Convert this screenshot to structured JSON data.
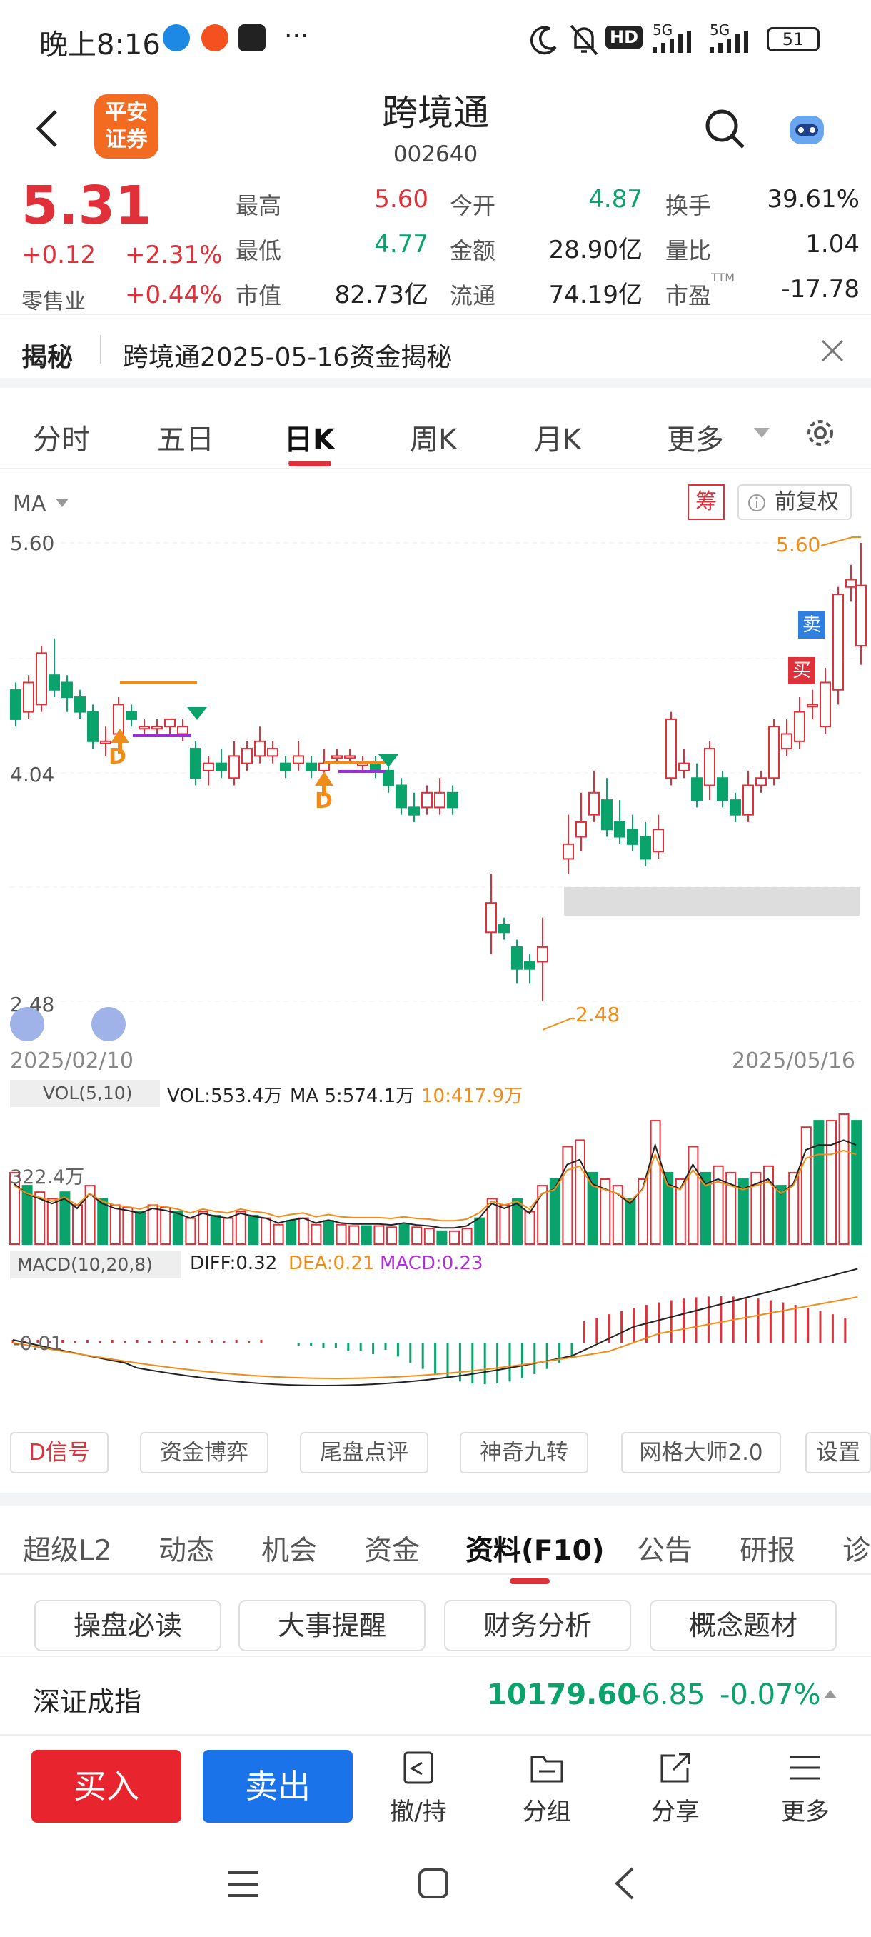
{
  "status_bar": {
    "time": "晚上8:16",
    "more": "···",
    "hd": "HD",
    "net1": "5G",
    "net2": "5G",
    "battery": "51"
  },
  "header": {
    "logo_line1": "平安",
    "logo_line2": "证券",
    "title": "跨境通",
    "code": "002640"
  },
  "quote": {
    "price": "5.31",
    "change": "+0.12",
    "change_pct": "+2.31%",
    "sector": "零售业",
    "sector_pct": "+0.44%",
    "rows": [
      [
        {
          "l": "最高",
          "v": "5.60",
          "c": "red"
        },
        {
          "l": "今开",
          "v": "4.87",
          "c": "green"
        },
        {
          "l": "换手",
          "v": "39.61%",
          "c": "dark"
        }
      ],
      [
        {
          "l": "最低",
          "v": "4.77",
          "c": "green"
        },
        {
          "l": "金额",
          "v": "28.90亿",
          "c": "dark"
        },
        {
          "l": "量比",
          "v": "1.04",
          "c": "dark"
        }
      ],
      [
        {
          "l": "市值",
          "v": "82.73亿",
          "c": "dark"
        },
        {
          "l": "流通",
          "v": "74.19亿",
          "c": "dark"
        },
        {
          "l": "市盈",
          "v": "-17.78",
          "c": "dark",
          "sup": "TTM"
        }
      ]
    ]
  },
  "secret": {
    "tag": "揭秘",
    "text": "跨境通2025-05-16资金揭秘"
  },
  "chart_tabs": [
    "分时",
    "五日",
    "日K",
    "周K",
    "月K",
    "更多"
  ],
  "chart_tab_active": "日K",
  "kline": {
    "ma_label": "MA",
    "chou": "筹",
    "fq": "前复权",
    "high_label": "5.60",
    "mid_label": "4.04",
    "low_label": "2.48",
    "max_mark": "5.60",
    "min_mark": "2.48",
    "date_start": "2025/02/10",
    "date_end": "2025/05/16",
    "sell_tag": "卖",
    "buy_tag": "买",
    "d_tag": "D"
  },
  "vol": {
    "label": "VOL(5,10)",
    "value": "VOL:553.4万",
    "ma5": "MA 5:574.1万",
    "ma10": "10:417.9万",
    "axis": "322.4万"
  },
  "macd": {
    "label": "MACD(10,20,8)",
    "diff": "DIFF:0.32",
    "dea": "DEA:0.21",
    "macd": "MACD:0.23",
    "axis": "-0.01"
  },
  "feature_buttons": [
    "D信号",
    "资金博弈",
    "尾盘点评",
    "神奇九转",
    "网格大师2.0",
    "设置"
  ],
  "f10_tabs": [
    "超级L2",
    "动态",
    "机会",
    "资金",
    "资料(F10)",
    "公告",
    "研报",
    "诊"
  ],
  "f10_active": "资料(F10)",
  "f10_options": [
    "操盘必读",
    "大事提醒",
    "财务分析",
    "概念题材"
  ],
  "index_bar": {
    "name": "深证成指",
    "value": "10179.60",
    "change": "-6.85",
    "pct": "-0.07%"
  },
  "actions": {
    "buy": "买入",
    "sell": "卖出",
    "tools": [
      "撤/持",
      "分组",
      "分享",
      "更多"
    ]
  },
  "chart_data": {
    "type": "candlestick",
    "x_start": "2025/02/10",
    "x_end": "2025/05/16",
    "ylim": [
      2.48,
      5.6
    ],
    "y_ticks": [
      5.6,
      4.04,
      2.48
    ],
    "colors": {
      "up": "#e0303a",
      "down": "#0aa36b"
    }
  }
}
